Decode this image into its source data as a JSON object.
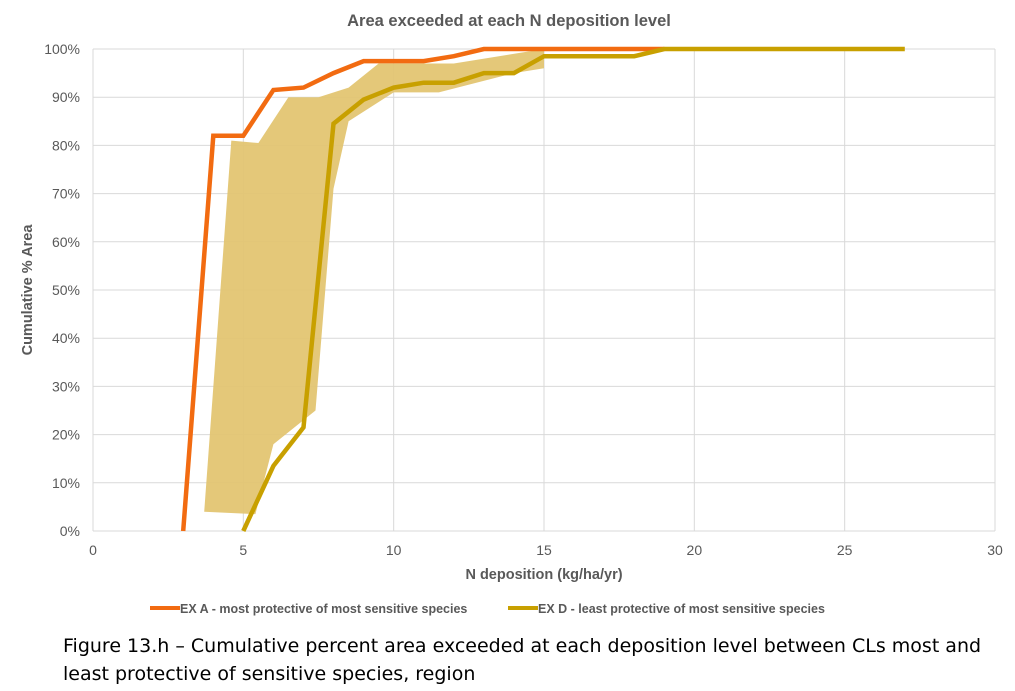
{
  "chart_data": {
    "type": "line",
    "title": "Area exceeded at each N  deposition level",
    "xlabel": "N deposition (kg/ha/yr)",
    "ylabel": "Cumulative % Area",
    "xlim": [
      0,
      30
    ],
    "ylim": [
      0,
      100
    ],
    "x_ticks": [
      0,
      5,
      10,
      15,
      20,
      25,
      30
    ],
    "y_ticks": [
      0,
      10,
      20,
      30,
      40,
      50,
      60,
      70,
      80,
      90,
      100
    ],
    "y_tick_suffix": "%",
    "grid": true,
    "legend_position": "bottom",
    "series": [
      {
        "name": "EX A  - most protective of most sensitive species",
        "color": "#f26b11",
        "x": [
          3,
          4,
          5,
          6,
          7,
          8,
          9,
          10,
          11,
          12,
          13,
          14,
          15,
          16,
          17,
          18,
          19
        ],
        "values": [
          0,
          82,
          82,
          91.5,
          92,
          95,
          97.5,
          97.5,
          97.5,
          98.5,
          100,
          100,
          100,
          100,
          100,
          100,
          100
        ]
      },
      {
        "name": "EX D -  least protective of most sensitive species",
        "color": "#c8a000",
        "x": [
          5,
          6,
          7,
          8,
          9,
          10,
          11,
          12,
          13,
          14,
          15,
          16,
          17,
          18,
          19,
          20,
          21,
          22,
          23,
          24,
          25,
          26,
          27
        ],
        "values": [
          0,
          13.5,
          21.5,
          84.5,
          89.5,
          92,
          93,
          93,
          95,
          95,
          98.5,
          98.5,
          98.5,
          98.5,
          100,
          100,
          100,
          100,
          100,
          100,
          100,
          100,
          100
        ]
      }
    ],
    "band": {
      "color": "#e3c572",
      "upper": [
        [
          4.6,
          81
        ],
        [
          5.5,
          80.5
        ],
        [
          6.5,
          90
        ],
        [
          7.5,
          90
        ],
        [
          8.5,
          92
        ],
        [
          9.5,
          97
        ],
        [
          12,
          97
        ],
        [
          15,
          100
        ]
      ],
      "lower": [
        [
          15,
          96
        ],
        [
          14,
          95
        ],
        [
          11.5,
          91
        ],
        [
          10,
          91
        ],
        [
          8.5,
          85
        ],
        [
          8,
          71
        ],
        [
          7.4,
          25
        ],
        [
          6,
          18
        ],
        [
          5.4,
          3.5
        ],
        [
          3.7,
          4
        ]
      ]
    }
  },
  "caption": "Figure 13.h – Cumulative percent area exceeded at each deposition level between CLs most and least protective of sensitive species, region"
}
